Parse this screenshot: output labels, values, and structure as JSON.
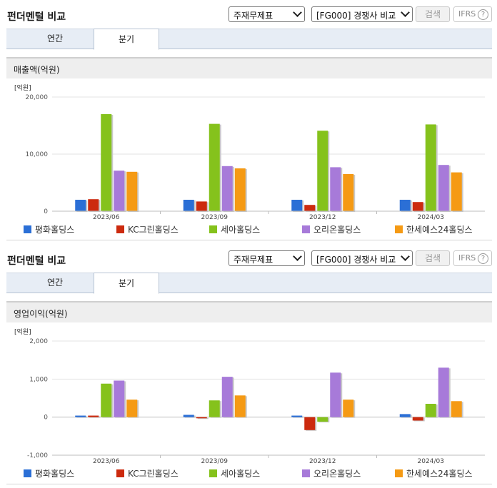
{
  "sections": [
    {
      "title": "펀더멘털 비교",
      "select_type": "주재무제표",
      "select_compare": "[FG000] 경쟁사 비교",
      "search_label": "검색",
      "ifrs_label": "IFRS",
      "tabs": [
        {
          "label": "연간"
        },
        {
          "label": "분기"
        }
      ],
      "active_tab": "분기",
      "chart_title": "매출액(억원)"
    },
    {
      "title": "펀더멘털 비교",
      "select_type": "주재무제표",
      "select_compare": "[FG000] 경쟁사 비교",
      "search_label": "검색",
      "ifrs_label": "IFRS",
      "tabs": [
        {
          "label": "연간"
        },
        {
          "label": "분기"
        }
      ],
      "active_tab": "분기",
      "chart_title": "영업이익(억원)"
    }
  ],
  "legend": [
    {
      "name": "평화홀딩스",
      "color": "#2b6fd6"
    },
    {
      "name": "KC그린홀딩스",
      "color": "#cc2a0e"
    },
    {
      "name": "세아홀딩스",
      "color": "#85c21c"
    },
    {
      "name": "오리온홀딩스",
      "color": "#a77ad9"
    },
    {
      "name": "한세예스24홀딩스",
      "color": "#f59a14"
    }
  ],
  "chart_data": [
    {
      "type": "bar",
      "unit_label": "[억원]",
      "categories": [
        "2023/06",
        "2023/09",
        "2023/12",
        "2024/03"
      ],
      "ylim": [
        0,
        20000
      ],
      "yticks": [
        0,
        10000,
        20000
      ],
      "ytick_labels": [
        "0",
        "10,000",
        "20,000"
      ],
      "series": [
        {
          "name": "평화홀딩스",
          "color": "#2b6fd6",
          "values": [
            2000,
            2000,
            2000,
            2000
          ]
        },
        {
          "name": "KC그린홀딩스",
          "color": "#cc2a0e",
          "values": [
            2100,
            1700,
            1100,
            1600
          ]
        },
        {
          "name": "세아홀딩스",
          "color": "#85c21c",
          "values": [
            17000,
            15300,
            14100,
            15200
          ]
        },
        {
          "name": "오리온홀딩스",
          "color": "#a77ad9",
          "values": [
            7100,
            7900,
            7700,
            8100
          ]
        },
        {
          "name": "한세예스24홀딩스",
          "color": "#f59a14",
          "values": [
            6900,
            7500,
            6500,
            6800
          ]
        }
      ]
    },
    {
      "type": "bar",
      "unit_label": "[억원]",
      "categories": [
        "2023/06",
        "2023/09",
        "2023/12",
        "2024/03"
      ],
      "ylim": [
        -1000,
        2000
      ],
      "yticks": [
        -1000,
        0,
        1000,
        2000
      ],
      "ytick_labels": [
        "-1,000",
        "0",
        "1,000",
        "2,000"
      ],
      "series": [
        {
          "name": "평화홀딩스",
          "color": "#2b6fd6",
          "values": [
            40,
            60,
            40,
            80
          ]
        },
        {
          "name": "KC그린홀딩스",
          "color": "#cc2a0e",
          "values": [
            40,
            -30,
            -340,
            -90
          ]
        },
        {
          "name": "세아홀딩스",
          "color": "#85c21c",
          "values": [
            880,
            440,
            -120,
            350
          ]
        },
        {
          "name": "오리온홀딩스",
          "color": "#a77ad9",
          "values": [
            960,
            1060,
            1170,
            1300
          ]
        },
        {
          "name": "한세예스24홀딩스",
          "color": "#f59a14",
          "values": [
            460,
            570,
            460,
            420
          ]
        }
      ]
    }
  ]
}
